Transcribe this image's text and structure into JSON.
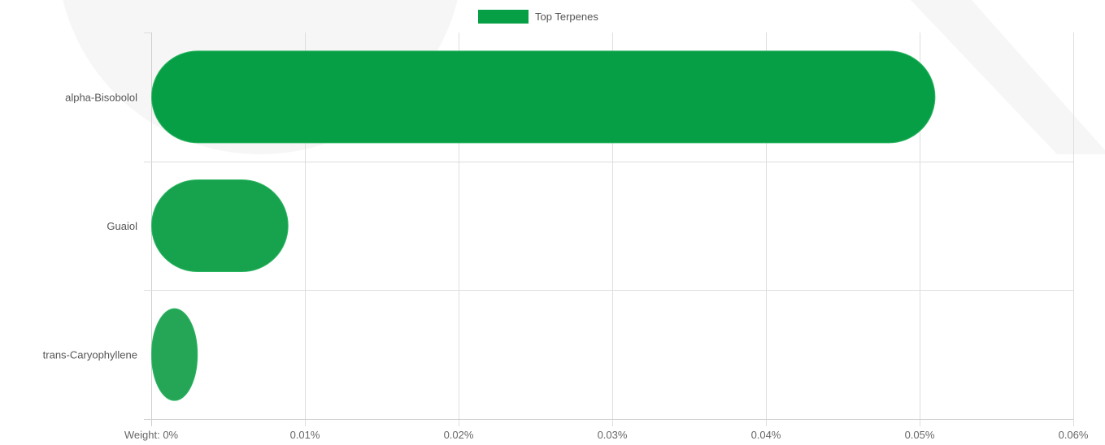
{
  "chart_data": {
    "type": "bar",
    "orientation": "horizontal",
    "categories": [
      "alpha-Bisobolol",
      "Guaiol",
      "trans-Caryophyllene"
    ],
    "series": [
      {
        "name": "Top Terpenes",
        "values": [
          0.051,
          0.0089,
          0.003
        ],
        "colors": [
          "#079f45",
          "#17a34d",
          "#24a656"
        ]
      }
    ],
    "xlim": [
      0,
      0.06
    ],
    "x_ticks": [
      0,
      0.01,
      0.02,
      0.03,
      0.04,
      0.05,
      0.06
    ],
    "x_tick_labels": [
      "Weight: 0%",
      "0.01%",
      "0.02%",
      "0.03%",
      "0.04%",
      "0.05%",
      "0.06%"
    ],
    "legend": {
      "position": "top-center",
      "color": "#079f45"
    },
    "grid": true,
    "bar_style": "rounded"
  }
}
